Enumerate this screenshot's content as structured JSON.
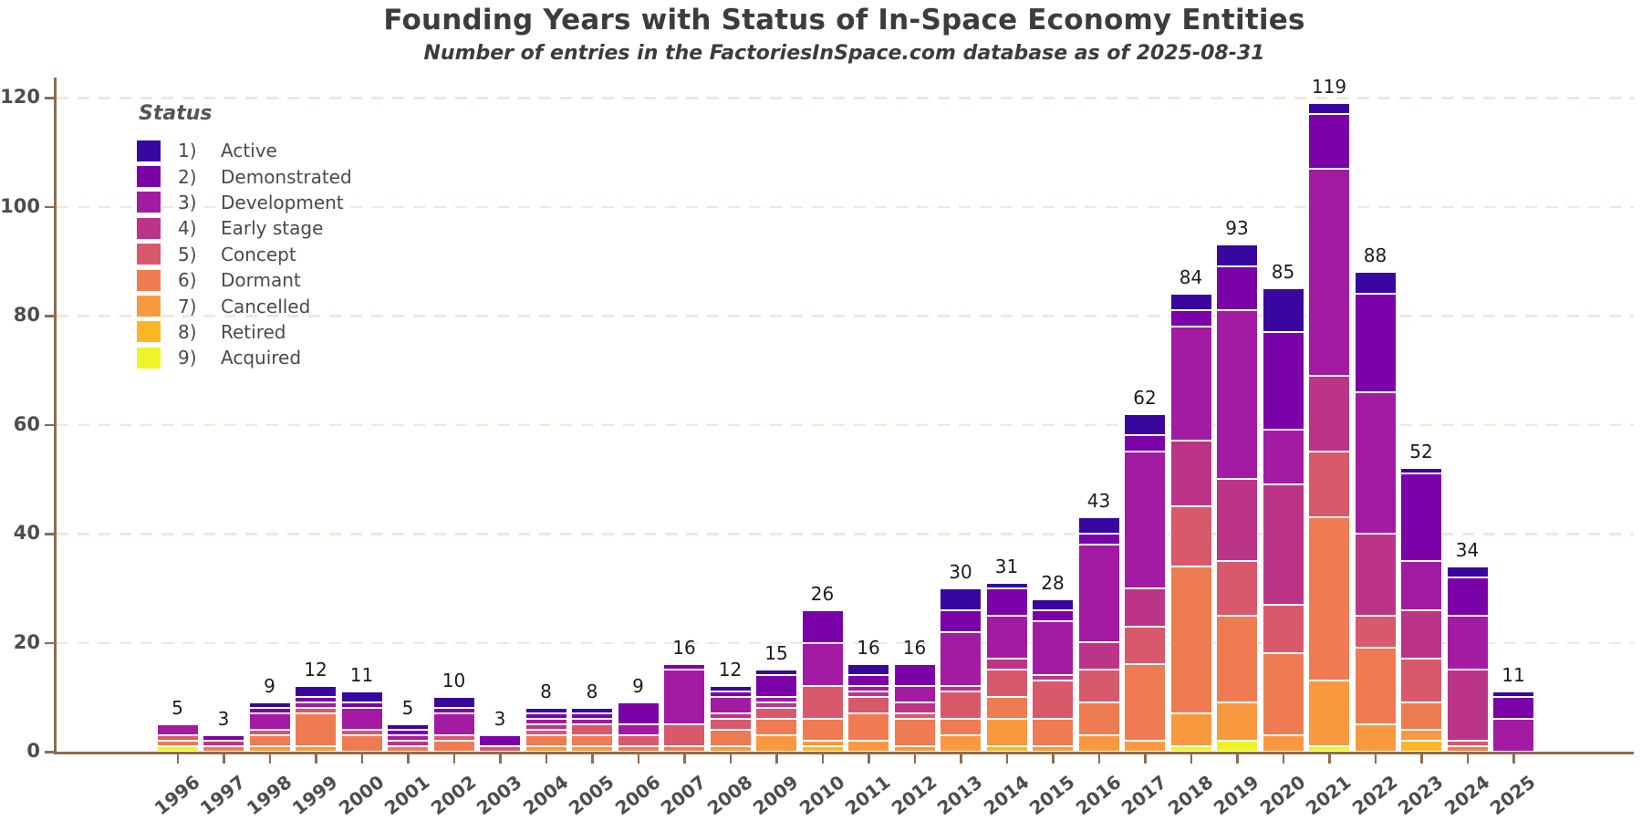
{
  "title": "Founding Years with Status of In-Space Economy Entities",
  "subtitle": "Number of entries in the FactoriesInSpace.com database as of 2025-08-31",
  "legend": {
    "title": "Status",
    "items": [
      {
        "n": "1)",
        "label": "Active",
        "color": "#39079F"
      },
      {
        "n": "2)",
        "label": "Demonstrated",
        "color": "#7A02A8"
      },
      {
        "n": "3)",
        "label": "Development",
        "color": "#A21BA2"
      },
      {
        "n": "4)",
        "label": "Early stage",
        "color": "#BB3488"
      },
      {
        "n": "5)",
        "label": "Concept",
        "color": "#D8586C"
      },
      {
        "n": "6)",
        "label": "Dormant",
        "color": "#EE7B52"
      },
      {
        "n": "7)",
        "label": "Cancelled",
        "color": "#F9993F"
      },
      {
        "n": "8)",
        "label": "Retired",
        "color": "#FBB628"
      },
      {
        "n": "9)",
        "label": "Acquired",
        "color": "#EFF42A"
      }
    ]
  },
  "colors": {
    "axis": "#8E6C50",
    "grid": "#F5E6D8",
    "tick_label": "#4D4D4D",
    "value_label": "#1C1C1C",
    "background": "#FFFFFF"
  },
  "chart_data": {
    "type": "bar",
    "stacked": true,
    "title": "Founding Years with Status of In-Space Economy Entities",
    "subtitle": "Number of entries in the FactoriesInSpace.com database as of 2025-08-31",
    "xlabel": "",
    "ylabel": "",
    "ylim": [
      0,
      124
    ],
    "yticks": [
      0,
      20,
      40,
      60,
      80,
      100,
      120
    ],
    "grid": "horizontal-dashed",
    "legend_position": "upper-left",
    "categories": [
      "1996",
      "1997",
      "1998",
      "1999",
      "2000",
      "2001",
      "2002",
      "2003",
      "2004",
      "2005",
      "2006",
      "2007",
      "2008",
      "2009",
      "2010",
      "2011",
      "2012",
      "2013",
      "2014",
      "2015",
      "2016",
      "2017",
      "2018",
      "2019",
      "2020",
      "2021",
      "2022",
      "2023",
      "2024",
      "2025"
    ],
    "totals": [
      5,
      3,
      9,
      12,
      11,
      5,
      10,
      3,
      8,
      8,
      9,
      16,
      12,
      15,
      26,
      16,
      16,
      30,
      31,
      28,
      43,
      62,
      84,
      93,
      85,
      119,
      88,
      52,
      34,
      11
    ],
    "series": [
      {
        "name": "1) Active",
        "color": "#39079F",
        "values": [
          0,
          0,
          1,
          2,
          2,
          1,
          2,
          0,
          1,
          1,
          0,
          0,
          1,
          1,
          0,
          2,
          0,
          4,
          1,
          2,
          3,
          4,
          3,
          4,
          8,
          2,
          4,
          1,
          2,
          1
        ]
      },
      {
        "name": "2) Demonstrated",
        "color": "#7A02A8",
        "values": [
          0,
          1,
          1,
          1,
          1,
          1,
          1,
          2,
          1,
          1,
          4,
          1,
          1,
          4,
          6,
          2,
          4,
          4,
          5,
          2,
          2,
          3,
          3,
          8,
          18,
          10,
          18,
          16,
          7,
          4
        ]
      },
      {
        "name": "3) Development",
        "color": "#A21BA2",
        "values": [
          2,
          0,
          3,
          1,
          4,
          1,
          4,
          0,
          1,
          1,
          2,
          10,
          3,
          1,
          8,
          1,
          3,
          10,
          8,
          10,
          18,
          25,
          21,
          31,
          10,
          38,
          26,
          9,
          10,
          6
        ]
      },
      {
        "name": "4) Early stage",
        "color": "#BB3488",
        "values": [
          0,
          1,
          0,
          0,
          0,
          1,
          0,
          0,
          1,
          0,
          0,
          0,
          1,
          1,
          0,
          1,
          2,
          1,
          2,
          1,
          5,
          7,
          12,
          15,
          22,
          14,
          15,
          9,
          13,
          0
        ]
      },
      {
        "name": "5) Concept",
        "color": "#D8586C",
        "values": [
          1,
          0,
          1,
          1,
          1,
          0,
          1,
          1,
          1,
          2,
          2,
          4,
          2,
          2,
          6,
          3,
          1,
          5,
          5,
          7,
          6,
          7,
          11,
          10,
          9,
          12,
          6,
          8,
          1,
          0
        ]
      },
      {
        "name": "6) Dormant",
        "color": "#EE7B52",
        "values": [
          1,
          1,
          2,
          6,
          3,
          1,
          2,
          0,
          2,
          2,
          1,
          1,
          3,
          3,
          4,
          5,
          5,
          3,
          4,
          5,
          6,
          14,
          27,
          16,
          15,
          30,
          14,
          5,
          1,
          0
        ]
      },
      {
        "name": "7) Cancelled",
        "color": "#F9993F",
        "values": [
          0,
          0,
          1,
          1,
          0,
          0,
          0,
          0,
          1,
          1,
          0,
          0,
          1,
          3,
          1,
          2,
          1,
          3,
          5,
          1,
          3,
          2,
          6,
          7,
          3,
          12,
          5,
          2,
          0,
          0
        ]
      },
      {
        "name": "8) Retired",
        "color": "#FBB628",
        "values": [
          0,
          0,
          0,
          0,
          0,
          0,
          0,
          0,
          0,
          0,
          0,
          0,
          0,
          0,
          1,
          0,
          0,
          0,
          1,
          0,
          0,
          0,
          0,
          0,
          0,
          0,
          0,
          2,
          0,
          0
        ]
      },
      {
        "name": "9) Acquired",
        "color": "#EFF42A",
        "values": [
          1,
          0,
          0,
          0,
          0,
          0,
          0,
          0,
          0,
          0,
          0,
          0,
          0,
          0,
          0,
          0,
          0,
          0,
          0,
          0,
          0,
          0,
          1,
          2,
          0,
          1,
          0,
          0,
          0,
          0
        ]
      }
    ]
  }
}
